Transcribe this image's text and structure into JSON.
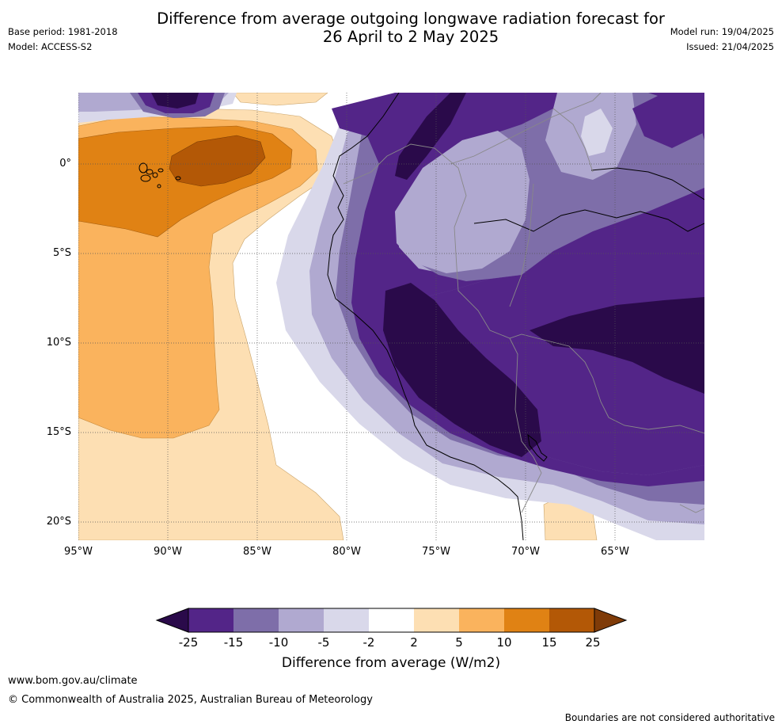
{
  "title_line1": "Difference from average outgoing longwave radiation forecast for",
  "title_line2": "26 April to 2 May 2025",
  "base_period": "Base period: 1981-2018",
  "model": "Model: ACCESS-S2",
  "model_run": "Model run: 19/04/2025",
  "issued": "Issued: 21/04/2025",
  "map": {
    "lon_ticks": [
      "95°W",
      "90°W",
      "85°W",
      "80°W",
      "75°W",
      "70°W",
      "65°W"
    ],
    "lat_ticks": [
      "0°",
      "5°S",
      "10°S",
      "15°S",
      "20°S"
    ],
    "lon_range": [
      -95,
      -60
    ],
    "lat_range": [
      -21,
      4
    ]
  },
  "colorbar": {
    "title": "Difference from average (W/m2)",
    "levels": [
      "-25",
      "-15",
      "-10",
      "-5",
      "-2",
      "2",
      "5",
      "10",
      "15",
      "25"
    ],
    "colors": [
      "#2a0a4a",
      "#532588",
      "#7e6ea9",
      "#b0a9d0",
      "#d9d8ea",
      "#ffffff",
      "#fddfb3",
      "#fab35d",
      "#e08214",
      "#b35806",
      "#7f3b08"
    ]
  },
  "footer": {
    "url": "www.bom.gov.au/climate",
    "copyright": "© Commonwealth of Australia 2025, Australian Bureau of Meteorology",
    "disclaimer": "Boundaries are not considered authoritative"
  }
}
